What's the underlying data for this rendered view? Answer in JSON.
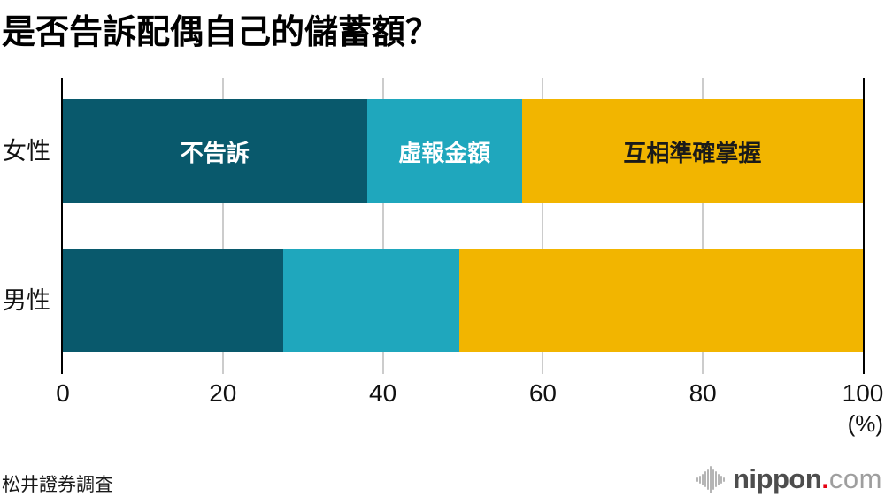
{
  "title": "是否告訴配偶自己的儲蓄額？",
  "source": "松井證券調査",
  "axis": {
    "unit_label": "(%)"
  },
  "colors": {
    "bar_dark_teal": "#09596C",
    "bar_cyan": "#1FA7BD",
    "bar_yellow": "#F2B500",
    "gridline": "#cccccc",
    "axis_line": "#000000",
    "logo_red": "#e60012",
    "logo_gray_dark": "#4d4d4d",
    "logo_gray_light": "#9e9e9e"
  },
  "logo": {
    "icon": "audio-wave-icon",
    "text_main": "nippon",
    "dot": ".",
    "text_suffix": "com"
  },
  "chart_data": {
    "type": "bar",
    "orientation": "horizontal",
    "stacked": true,
    "title": "是否告訴配偶自己的儲蓄額？",
    "categories": [
      "女性",
      "男性"
    ],
    "series": [
      {
        "name": "不告訴",
        "color": "#09596C",
        "label_color": "#ffffff",
        "values": [
          38.0,
          27.5
        ]
      },
      {
        "name": "虛報金額",
        "color": "#1FA7BD",
        "label_color": "#ffffff",
        "values": [
          19.4,
          22.1
        ]
      },
      {
        "name": "互相準確掌握",
        "color": "#F2B500",
        "label_color": "#1a1a1a",
        "values": [
          42.6,
          50.4
        ]
      }
    ],
    "x_ticks": [
      0,
      20,
      40,
      60,
      80,
      100
    ],
    "xlim": [
      0,
      100
    ],
    "unit": "(%)",
    "grid": true,
    "legend": "labels-inside-top-bar",
    "labels_on_row": 0,
    "xlabel": "",
    "ylabel": ""
  }
}
